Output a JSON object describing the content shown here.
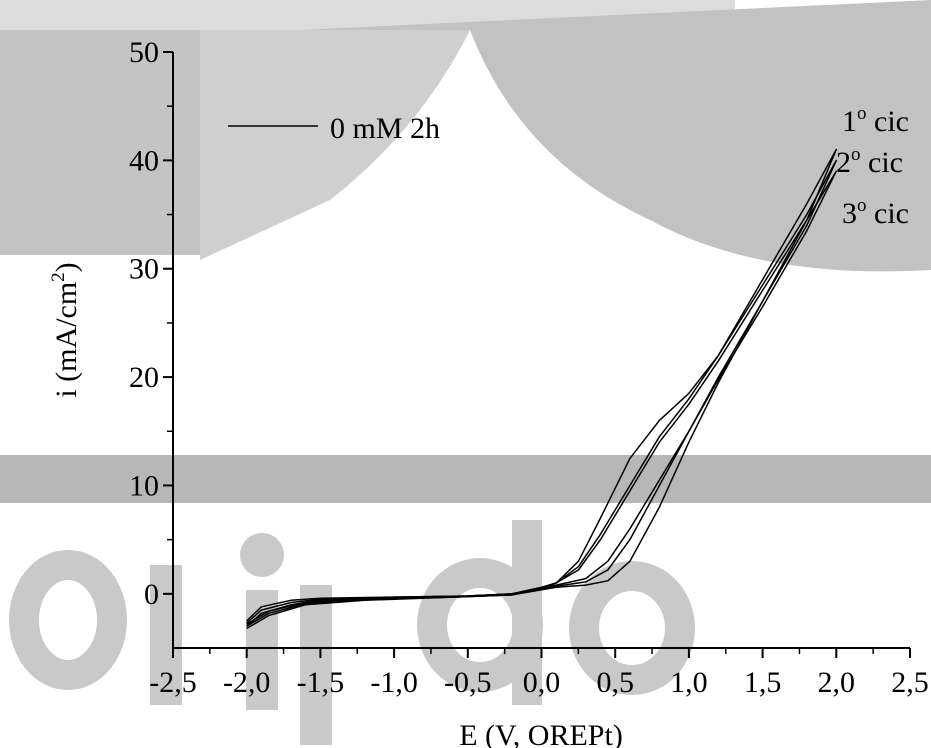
{
  "chart_data": {
    "type": "line",
    "xlabel": "E (V, OREPt)",
    "ylabel_main": "i (mA/cm",
    "ylabel_sup": "2",
    "ylabel_close": ")",
    "xlim": [
      -2.5,
      2.5
    ],
    "ylim": [
      -5,
      50
    ],
    "x_ticks": [
      -2.5,
      -2.0,
      -1.5,
      -1.0,
      -0.5,
      0.0,
      0.5,
      1.0,
      1.5,
      2.0,
      2.5
    ],
    "x_tick_labels": [
      "-2,5",
      "-2,0",
      "-1,5",
      "-1,0",
      "-0,5",
      "0,0",
      "0,5",
      "1,0",
      "1,5",
      "2,0",
      "2,5"
    ],
    "y_ticks": [
      0,
      10,
      20,
      30,
      40,
      50
    ],
    "y_tick_labels": [
      "0",
      "10",
      "20",
      "30",
      "40",
      "50"
    ],
    "grid": false,
    "legend": {
      "position": "top-left",
      "entries": [
        "0 mM 2h"
      ]
    },
    "annotations": [
      {
        "num": "1",
        "sup": "o",
        "text": " cic"
      },
      {
        "num": "2",
        "sup": "o",
        "text": " cic"
      },
      {
        "num": "3",
        "sup": "o",
        "text": " cic"
      }
    ],
    "series": [
      {
        "name": "0 mM 2h",
        "color": "#000000",
        "cycles": [
          {
            "points": [
              [
                -2.0,
                -2.5
              ],
              [
                -1.9,
                -1.2
              ],
              [
                -1.7,
                -0.6
              ],
              [
                -1.5,
                -0.4
              ],
              [
                -1.0,
                -0.3
              ],
              [
                -0.5,
                -0.2
              ],
              [
                -0.2,
                0.0
              ],
              [
                0.0,
                0.5
              ],
              [
                0.1,
                1.0
              ],
              [
                0.25,
                3.0
              ],
              [
                0.4,
                7.0
              ],
              [
                0.6,
                12.5
              ],
              [
                0.8,
                16.0
              ],
              [
                1.0,
                18.5
              ],
              [
                1.2,
                22.0
              ],
              [
                1.5,
                29.0
              ],
              [
                1.8,
                36.0
              ],
              [
                2.0,
                41.0
              ],
              [
                1.8,
                34.5
              ],
              [
                1.5,
                27.0
              ],
              [
                1.2,
                19.5
              ],
              [
                1.0,
                14.0
              ],
              [
                0.8,
                8.0
              ],
              [
                0.6,
                3.0
              ],
              [
                0.45,
                1.2
              ],
              [
                0.3,
                0.8
              ],
              [
                0.1,
                0.6
              ],
              [
                -0.2,
                -0.1
              ],
              [
                -0.6,
                -0.3
              ],
              [
                -1.2,
                -0.5
              ],
              [
                -1.6,
                -0.8
              ],
              [
                -1.85,
                -1.6
              ],
              [
                -2.0,
                -2.8
              ]
            ]
          },
          {
            "points": [
              [
                -2.0,
                -2.7
              ],
              [
                -1.9,
                -1.5
              ],
              [
                -1.7,
                -0.8
              ],
              [
                -1.5,
                -0.5
              ],
              [
                -1.0,
                -0.3
              ],
              [
                -0.5,
                -0.2
              ],
              [
                -0.2,
                0.0
              ],
              [
                0.0,
                0.6
              ],
              [
                0.1,
                1.0
              ],
              [
                0.25,
                2.5
              ],
              [
                0.4,
                5.5
              ],
              [
                0.6,
                10.0
              ],
              [
                0.8,
                14.5
              ],
              [
                1.0,
                18.0
              ],
              [
                1.2,
                22.0
              ],
              [
                1.5,
                28.5
              ],
              [
                1.8,
                35.0
              ],
              [
                2.0,
                40.0
              ],
              [
                1.8,
                34.0
              ],
              [
                1.5,
                27.0
              ],
              [
                1.2,
                20.0
              ],
              [
                1.0,
                15.0
              ],
              [
                0.8,
                10.0
              ],
              [
                0.6,
                5.0
              ],
              [
                0.45,
                2.2
              ],
              [
                0.3,
                1.1
              ],
              [
                0.1,
                0.7
              ],
              [
                -0.2,
                -0.1
              ],
              [
                -0.6,
                -0.3
              ],
              [
                -1.2,
                -0.5
              ],
              [
                -1.6,
                -0.9
              ],
              [
                -1.85,
                -1.8
              ],
              [
                -2.0,
                -3.0
              ]
            ]
          },
          {
            "points": [
              [
                -2.0,
                -3.0
              ],
              [
                -1.9,
                -1.8
              ],
              [
                -1.7,
                -1.0
              ],
              [
                -1.5,
                -0.6
              ],
              [
                -1.0,
                -0.4
              ],
              [
                -0.5,
                -0.2
              ],
              [
                -0.2,
                0.0
              ],
              [
                0.0,
                0.6
              ],
              [
                0.1,
                1.0
              ],
              [
                0.25,
                2.2
              ],
              [
                0.4,
                5.0
              ],
              [
                0.6,
                9.5
              ],
              [
                0.8,
                14.0
              ],
              [
                1.0,
                17.5
              ],
              [
                1.2,
                21.5
              ],
              [
                1.5,
                28.0
              ],
              [
                1.8,
                34.5
              ],
              [
                2.0,
                39.0
              ],
              [
                1.8,
                33.5
              ],
              [
                1.5,
                26.5
              ],
              [
                1.2,
                19.8
              ],
              [
                1.0,
                15.0
              ],
              [
                0.8,
                10.5
              ],
              [
                0.6,
                6.0
              ],
              [
                0.45,
                3.0
              ],
              [
                0.3,
                1.4
              ],
              [
                0.1,
                0.8
              ],
              [
                -0.2,
                -0.1
              ],
              [
                -0.6,
                -0.3
              ],
              [
                -1.2,
                -0.6
              ],
              [
                -1.6,
                -1.0
              ],
              [
                -1.85,
                -2.0
              ],
              [
                -2.0,
                -3.2
              ]
            ]
          }
        ]
      }
    ]
  }
}
